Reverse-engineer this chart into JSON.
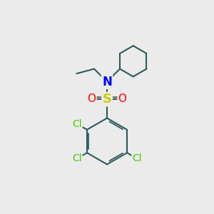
{
  "background_color": "#ebebeb",
  "bond_color": "#2d5a5a",
  "N_color": "#0000ff",
  "S_color": "#cccc00",
  "O_color": "#ff0000",
  "Cl_color": "#44cc00",
  "bond_width": 1.5,
  "font_size_atoms": 11,
  "font_size_labels": 10,
  "xlim": [
    0,
    10
  ],
  "ylim": [
    0,
    10
  ]
}
